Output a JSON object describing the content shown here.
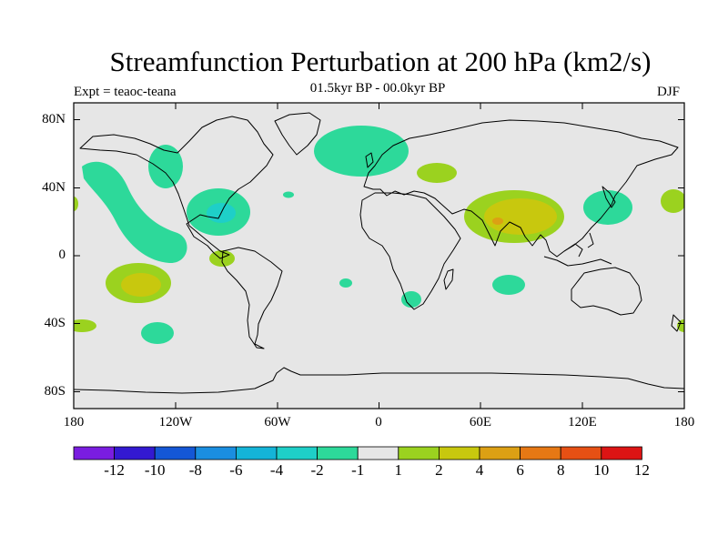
{
  "title": "Streamfunction Perturbation at 200 hPa (km2/s)",
  "left_label": "Expt = teaoc-teana",
  "center_label": "01.5kyr BP - 00.0kyr BP",
  "right_label": "DJF",
  "lat_labels": [
    "80N",
    "40N",
    "0",
    "40S",
    "80S"
  ],
  "lon_labels": [
    "180",
    "120W",
    "60W",
    "0",
    "60E",
    "120E",
    "180"
  ],
  "colorbar": {
    "labels": [
      "-12",
      "-10",
      "-8",
      "-6",
      "-4",
      "-2",
      "-1",
      "1",
      "2",
      "4",
      "6",
      "8",
      "10",
      "12"
    ],
    "colors": [
      "#7a1de0",
      "#3319d1",
      "#1457d6",
      "#1a8ee0",
      "#14b4d8",
      "#1ecfc8",
      "#2dd99a",
      "#e6e6e6",
      "#9bd21f",
      "#c8c80e",
      "#dca014",
      "#e67814",
      "#e65014",
      "#dc1414"
    ]
  },
  "map_colors": {
    "background": "#e6e6e6",
    "coast": "#000000"
  }
}
